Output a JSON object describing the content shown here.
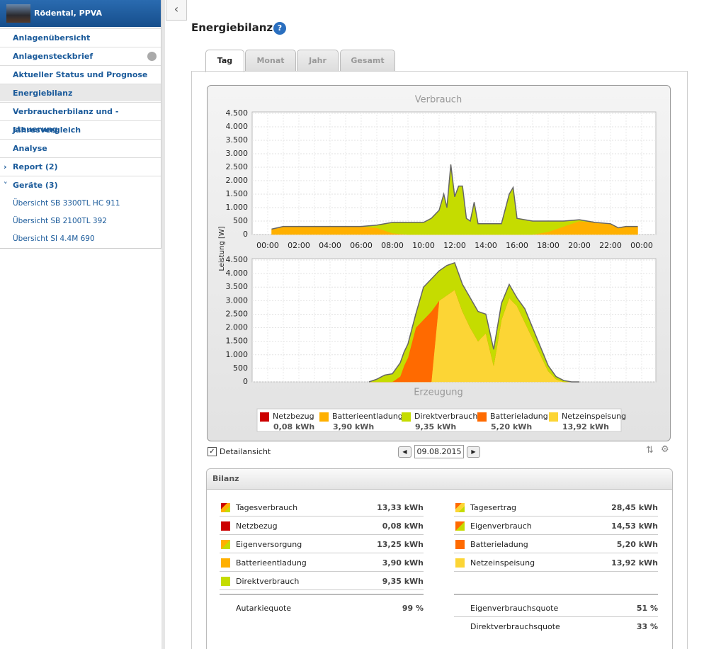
{
  "sidebar": {
    "plant": "Rödental, PPVA",
    "menu": [
      "Anlagenübersicht",
      "Anlagensteckbrief",
      "Aktueller Status und Prognose",
      "Energiebilanz",
      "Verbraucherbilanz und -steuerung",
      "Jahresvergleich",
      "Analyse",
      "Report (2)",
      "Geräte (3)"
    ],
    "devices": [
      "Übersicht SB 3300TL HC 911",
      "Übersicht SB 2100TL 392",
      "Übersicht SI 4.4M 690"
    ]
  },
  "page_title": "Energiebilanz",
  "tabs": [
    "Tag",
    "Monat",
    "Jahr",
    "Gesamt"
  ],
  "chart_data": [
    {
      "type": "area",
      "title": "Verbrauch",
      "y_label": "Leistung [W]",
      "x": [
        0.25,
        1,
        2,
        3,
        4,
        5,
        6,
        7,
        8,
        9,
        10,
        10.5,
        11,
        11.3,
        11.5,
        11.75,
        12,
        12.25,
        12.5,
        12.75,
        13,
        13.25,
        13.5,
        14,
        15,
        15.5,
        15.75,
        16,
        17,
        18,
        19,
        20,
        21,
        22,
        22.5,
        23,
        23.75
      ],
      "xlim": [
        0,
        24
      ],
      "xticks": [
        {
          "value": 0,
          "label": "00:00"
        },
        {
          "value": 2,
          "label": "02:00"
        },
        {
          "value": 4,
          "label": "04:00"
        },
        {
          "value": 6,
          "label": "06:00"
        },
        {
          "value": 8,
          "label": "08:00"
        },
        {
          "value": 10,
          "label": "10:00"
        },
        {
          "value": 12,
          "label": "12:00"
        },
        {
          "value": 14,
          "label": "14:00"
        },
        {
          "value": 16,
          "label": "16:00"
        },
        {
          "value": 18,
          "label": "18:00"
        },
        {
          "value": 20,
          "label": "20:00"
        },
        {
          "value": 22,
          "label": "22:00"
        },
        {
          "value": 24,
          "label": "00:00"
        }
      ],
      "ylim": [
        0,
        4500
      ],
      "yticks": [
        0,
        500,
        {
          "value": 1000,
          "label": "1.000"
        },
        {
          "value": 1500,
          "label": "1.500"
        },
        {
          "value": 2000,
          "label": "2.000"
        },
        {
          "value": 2500,
          "label": "2.500"
        },
        {
          "value": 3000,
          "label": "3.000"
        },
        {
          "value": 3500,
          "label": "3.500"
        },
        {
          "value": 4000,
          "label": "4.000"
        },
        {
          "value": 4500,
          "label": "4.500"
        }
      ],
      "grid": true,
      "series": [
        {
          "name": "Batterieentladung",
          "color": "#ffb000",
          "values": [
            200,
            300,
            300,
            300,
            300,
            300,
            300,
            250,
            50,
            0,
            0,
            0,
            0,
            0,
            0,
            0,
            0,
            0,
            0,
            0,
            0,
            0,
            0,
            0,
            0,
            0,
            0,
            0,
            0,
            100,
            300,
            500,
            450,
            400,
            250,
            300,
            300
          ]
        },
        {
          "name": "Direktverbrauch",
          "color": "#c5dc00",
          "values": [
            0,
            0,
            0,
            0,
            0,
            0,
            0,
            100,
            400,
            450,
            450,
            600,
            900,
            1500,
            1000,
            2600,
            1400,
            1800,
            1800,
            600,
            500,
            1200,
            400,
            400,
            400,
            1500,
            1750,
            600,
            500,
            400,
            200,
            50,
            0,
            0,
            0,
            0,
            0
          ]
        }
      ]
    },
    {
      "type": "area",
      "title": "Erzeugung",
      "x": [
        6.5,
        7,
        7.5,
        8,
        8.5,
        8.75,
        9,
        9.5,
        10,
        10.5,
        11,
        11.5,
        12,
        12.5,
        13,
        13.5,
        14,
        14.5,
        15,
        15.5,
        16,
        16.5,
        17,
        17.5,
        18,
        18.5,
        19,
        19.5,
        20
      ],
      "xlim": [
        0,
        24
      ],
      "ylim": [
        0,
        4500
      ],
      "yticks": [
        0,
        500,
        {
          "value": 1000,
          "label": "1.000"
        },
        {
          "value": 1500,
          "label": "1.500"
        },
        {
          "value": 2000,
          "label": "2.000"
        },
        {
          "value": 2500,
          "label": "2.500"
        },
        {
          "value": 3000,
          "label": "3.000"
        },
        {
          "value": 3500,
          "label": "3.500"
        },
        {
          "value": 4000,
          "label": "4.000"
        },
        {
          "value": 4500,
          "label": "4.500"
        }
      ],
      "grid": true,
      "series": [
        {
          "name": "Netzeinspeisung",
          "color": "#fcd535",
          "values": [
            0,
            0,
            0,
            0,
            0,
            0,
            0,
            0,
            0,
            0,
            3000,
            3200,
            3400,
            2600,
            2000,
            1500,
            1800,
            600,
            2300,
            3100,
            2800,
            2200,
            1600,
            1000,
            400,
            100,
            0,
            0,
            0
          ]
        },
        {
          "name": "Batterieladung",
          "color": "#ff6a00",
          "values": [
            0,
            0,
            0,
            0,
            200,
            600,
            900,
            2000,
            2300,
            2600,
            0,
            0,
            0,
            0,
            0,
            0,
            0,
            0,
            0,
            0,
            0,
            0,
            0,
            0,
            0,
            0,
            0,
            0,
            0
          ]
        },
        {
          "name": "Direktverbrauch",
          "color": "#c5dc00",
          "values": [
            0,
            100,
            250,
            300,
            500,
            500,
            500,
            500,
            1200,
            1200,
            1100,
            1100,
            1000,
            1000,
            1100,
            1100,
            700,
            600,
            600,
            500,
            300,
            500,
            400,
            300,
            200,
            100,
            50,
            0,
            0
          ]
        }
      ]
    }
  ],
  "legend": [
    {
      "name": "Netzbezug",
      "value": "0,08 kWh",
      "color": "#cc0000"
    },
    {
      "name": "Batterieentladung",
      "value": "3,90 kWh",
      "color": "#ffb000"
    },
    {
      "name": "Direktverbrauch",
      "value": "9,35 kWh",
      "color": "#c5dc00"
    },
    {
      "name": "Batterieladung",
      "value": "5,20 kWh",
      "color": "#ff6a00"
    },
    {
      "name": "Netzeinspeisung",
      "value": "13,92 kWh",
      "color": "#fcd535"
    }
  ],
  "controls": {
    "detail": "Detailansicht",
    "date": "09.08.2015"
  },
  "bilanz": {
    "title": "Bilanz",
    "left": [
      {
        "label": "Tagesverbrauch",
        "value": "13,33 kWh",
        "colors": [
          "#cc0000",
          "#ffb000",
          "#c5dc00"
        ]
      },
      {
        "label": "Netzbezug",
        "value": "0,08 kWh",
        "colors": [
          "#cc0000"
        ]
      },
      {
        "label": "Eigenversorgung",
        "value": "13,25 kWh",
        "colors": [
          "#ffb000",
          "#c5dc00"
        ]
      },
      {
        "label": "Batterieentladung",
        "value": "3,90 kWh",
        "colors": [
          "#ffb000"
        ]
      },
      {
        "label": "Direktverbrauch",
        "value": "9,35 kWh",
        "colors": [
          "#c5dc00"
        ]
      }
    ],
    "left_totals": [
      {
        "label": "Autarkiequote",
        "value": "99 %"
      }
    ],
    "right": [
      {
        "label": "Tagesertrag",
        "value": "28,45 kWh",
        "colors": [
          "#ff6a00",
          "#fcd535",
          "#c5dc00"
        ]
      },
      {
        "label": "Eigenverbrauch",
        "value": "14,53 kWh",
        "colors": [
          "#ff6a00",
          "#c5dc00"
        ]
      },
      {
        "label": "Batterieladung",
        "value": "5,20 kWh",
        "colors": [
          "#ff6a00"
        ]
      },
      {
        "label": "Netzeinspeisung",
        "value": "13,92 kWh",
        "colors": [
          "#fcd535"
        ]
      }
    ],
    "right_totals": [
      {
        "label": "Eigenverbrauchsquote",
        "value": "51 %"
      },
      {
        "label": "Direktverbrauchsquote",
        "value": "33 %"
      }
    ]
  }
}
